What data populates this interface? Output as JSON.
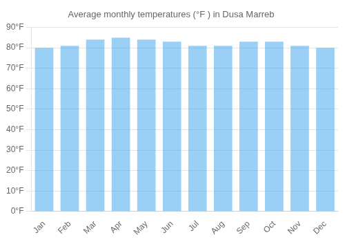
{
  "chart_data": {
    "type": "bar",
    "title": "Average monthly temperatures (°F ) in Dusa Marreb",
    "categories": [
      "Jan",
      "Feb",
      "Mar",
      "Apr",
      "May",
      "Jun",
      "Jul",
      "Aug",
      "Sep",
      "Oct",
      "Nov",
      "Dec"
    ],
    "values": [
      80,
      81,
      84,
      85,
      84,
      83,
      81,
      81,
      83,
      83,
      81,
      80
    ],
    "ylim": [
      0,
      90
    ],
    "yticks": [
      {
        "value": 0,
        "label": "0°F"
      },
      {
        "value": 10,
        "label": "10°F"
      },
      {
        "value": 20,
        "label": "20°F"
      },
      {
        "value": 30,
        "label": "30°F"
      },
      {
        "value": 40,
        "label": "40°F"
      },
      {
        "value": 50,
        "label": "50°F"
      },
      {
        "value": 60,
        "label": "60°F"
      },
      {
        "value": 70,
        "label": "70°F"
      },
      {
        "value": 80,
        "label": "80°F"
      },
      {
        "value": 90,
        "label": "90°F"
      }
    ],
    "grid": true
  }
}
